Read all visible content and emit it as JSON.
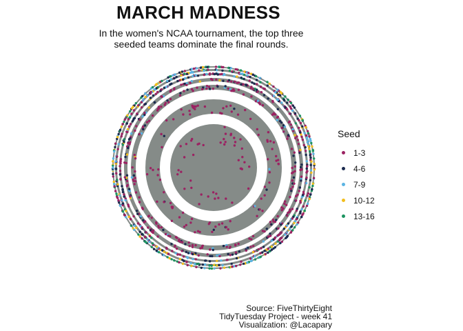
{
  "title": "MARCH MADNESS",
  "subtitle": [
    "In the women's NCAA tournament, the top three",
    "seeded teams dominate the final rounds."
  ],
  "caption": [
    "Source: FiveThirtyEight",
    "TidyTuesday Project - week 41",
    "Visualization: @Lacapary"
  ],
  "chart_data": {
    "type": "scatter",
    "coordinate_system": "polar",
    "title": "MARCH MADNESS",
    "legend": {
      "title": "Seed",
      "position": "right",
      "entries": [
        {
          "label": "1-3",
          "color": "#9B2262"
        },
        {
          "label": "4-6",
          "color": "#1B2A4E"
        },
        {
          "label": "7-9",
          "color": "#5BB4E3"
        },
        {
          "label": "10-12",
          "color": "#F2BE1D"
        },
        {
          "label": "13-16",
          "color": "#1C9460"
        }
      ]
    },
    "rings_background_color": "#858B88",
    "ring_count": 7,
    "seed_share_by_ring": [
      [
        1.0,
        0.0,
        0.0,
        0.0,
        0.0
      ],
      [
        0.92,
        0.06,
        0.02,
        0.0,
        0.0
      ],
      [
        0.75,
        0.18,
        0.05,
        0.02,
        0.0
      ],
      [
        0.55,
        0.3,
        0.1,
        0.04,
        0.01
      ],
      [
        0.4,
        0.3,
        0.17,
        0.09,
        0.04
      ],
      [
        0.27,
        0.25,
        0.22,
        0.16,
        0.1
      ],
      [
        0.2,
        0.2,
        0.2,
        0.2,
        0.2
      ]
    ]
  }
}
